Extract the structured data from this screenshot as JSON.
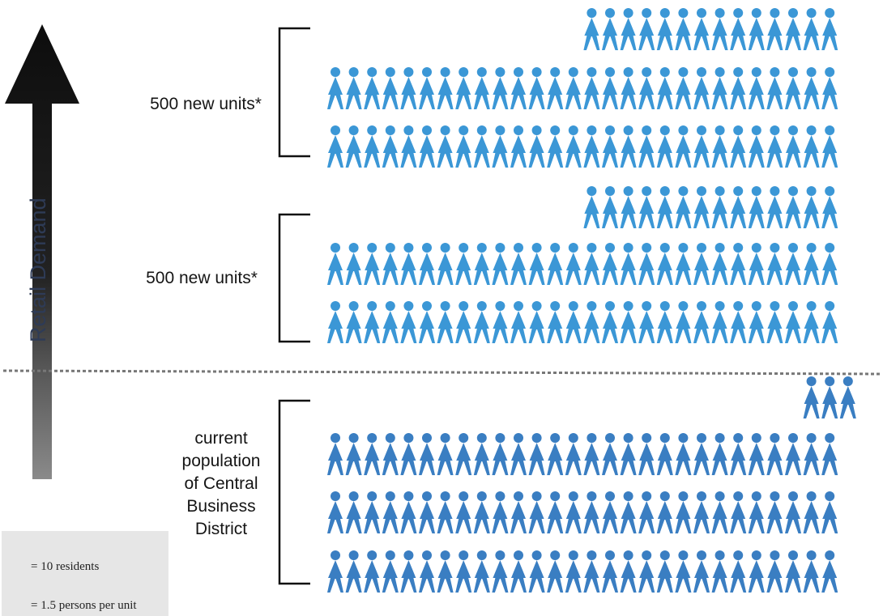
{
  "axis": {
    "label": "Retail Demand"
  },
  "groups": [
    {
      "id": "growth-top",
      "label": "500 new units*"
    },
    {
      "id": "growth-middle",
      "label": "500 new units*"
    },
    {
      "id": "current",
      "label": "current\npopulation\nof Central\nBusiness\nDistrict"
    }
  ],
  "legend": {
    "resident_icon_label": "= 10 residents",
    "footnote_label": "= 1.5 persons per unit",
    "footnote_symbol": "*"
  },
  "colors": {
    "new_units_figure": "#3b97d6",
    "current_figure": "#3a7ec2",
    "arrow": "#111111",
    "dashed_line": "#777777"
  },
  "icon": "person-figure"
}
